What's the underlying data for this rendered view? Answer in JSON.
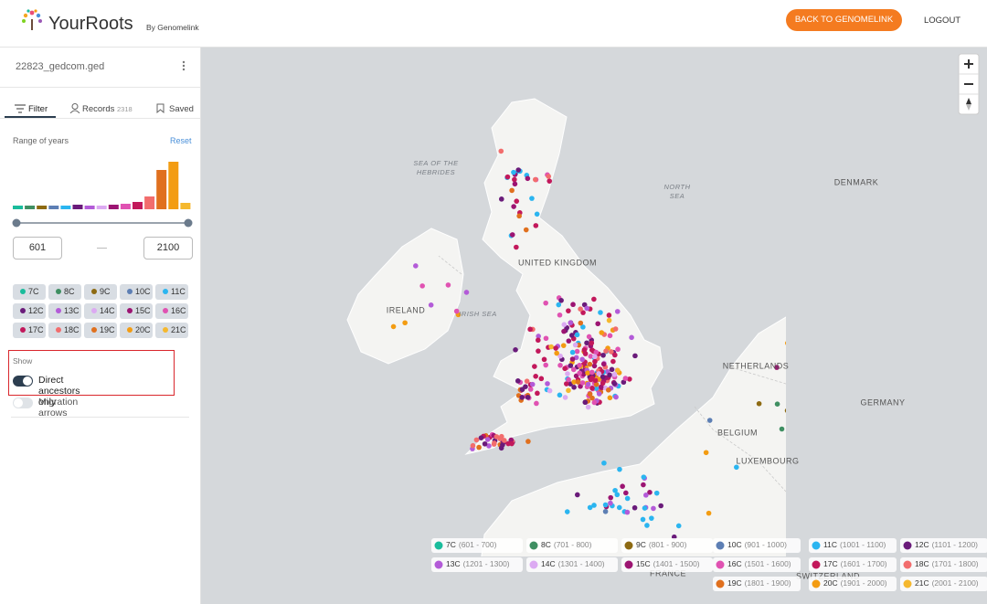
{
  "header": {
    "logo": "YourRoots",
    "byline": "By Genomelink",
    "back_button": "BACK TO GENOMELINK",
    "logout": "LOGOUT"
  },
  "sidebar": {
    "file_name": "22823_gedcom.ged",
    "tabs": [
      {
        "label": "Filter"
      },
      {
        "label": "Records",
        "count": "2318"
      },
      {
        "label": "Saved"
      }
    ],
    "range_title": "Range of years",
    "reset": "Reset",
    "year_from": "601",
    "year_to": "2100",
    "show_title": "Show",
    "toggles": [
      {
        "label": "Direct ancestors only",
        "on": true
      },
      {
        "label": "Migration arrows",
        "on": false
      }
    ]
  },
  "centuries": [
    {
      "label": "7C",
      "range": "(601 - 700)",
      "color": "#1abc9c",
      "bar": 4
    },
    {
      "label": "8C",
      "range": "(701 - 800)",
      "color": "#3f8f62",
      "bar": 4
    },
    {
      "label": "9C",
      "range": "(801 - 900)",
      "color": "#8d6a12",
      "bar": 4
    },
    {
      "label": "10C",
      "range": "(901 - 1000)",
      "color": "#5d7fb4",
      "bar": 4
    },
    {
      "label": "11C",
      "range": "(1001 - 1100)",
      "color": "#2bb5f0",
      "bar": 4
    },
    {
      "label": "12C",
      "range": "(1101 - 1200)",
      "color": "#6a1b7a",
      "bar": 5
    },
    {
      "label": "13C",
      "range": "(1201 - 1300)",
      "color": "#b35bd8",
      "bar": 4
    },
    {
      "label": "14C",
      "range": "(1301 - 1400)",
      "color": "#dcaaf2",
      "bar": 4
    },
    {
      "label": "15C",
      "range": "(1401 - 1500)",
      "color": "#9c1472",
      "bar": 5
    },
    {
      "label": "16C",
      "range": "(1501 - 1600)",
      "color": "#e052b2",
      "bar": 6
    },
    {
      "label": "17C",
      "range": "(1601 - 1700)",
      "color": "#c2185b",
      "bar": 8
    },
    {
      "label": "18C",
      "range": "(1701 - 1800)",
      "color": "#f26d6d",
      "bar": 14
    },
    {
      "label": "19C",
      "range": "(1801 - 1900)",
      "color": "#e0701e",
      "bar": 43
    },
    {
      "label": "20C",
      "range": "(1901 - 2000)",
      "color": "#f39c12",
      "bar": 52
    },
    {
      "label": "21C",
      "range": "(2001 - 2100)",
      "color": "#f5b82e",
      "bar": 7
    }
  ],
  "map": {
    "labels": [
      {
        "lines": [
          "SEA OF THE",
          "HEBRIDES"
        ]
      },
      {
        "lines": [
          "NORTH",
          "SEA"
        ]
      },
      {
        "lines": [
          "DENMARK"
        ]
      },
      {
        "lines": [
          "UNITED KINGDOM"
        ]
      },
      {
        "lines": [
          "IRELAND"
        ]
      },
      {
        "lines": [
          "IRISH SEA"
        ]
      },
      {
        "lines": [
          "NETHERLANDS"
        ]
      },
      {
        "lines": [
          "GERMANY"
        ]
      },
      {
        "lines": [
          "BELGIUM"
        ]
      },
      {
        "lines": [
          "LUXEMBOURG"
        ]
      },
      {
        "lines": [
          "FRANCE"
        ]
      },
      {
        "lines": [
          "SWITZERLAND"
        ]
      }
    ]
  }
}
